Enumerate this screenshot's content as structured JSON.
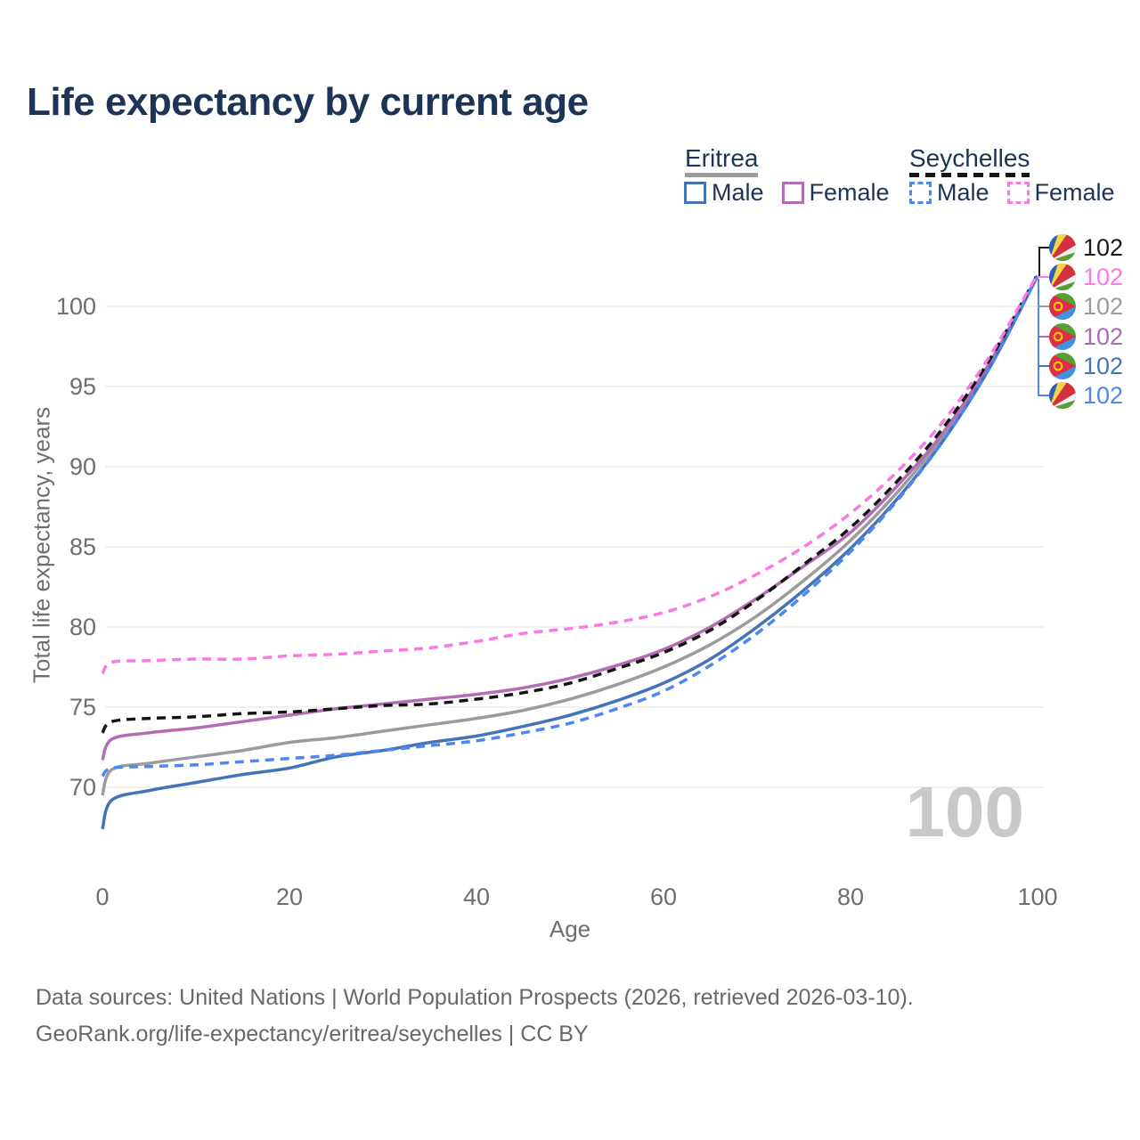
{
  "page": {
    "title": "Life expectancy by current age",
    "watermark": "100"
  },
  "legend": {
    "groups": [
      {
        "label": "Eritrea",
        "line_style": "solid",
        "line_color": "#9b9b9b",
        "items": [
          {
            "label": "Male",
            "color": "#4574b6",
            "dashed": false
          },
          {
            "label": "Female",
            "color": "#b26db4",
            "dashed": false
          }
        ]
      },
      {
        "label": "Seychelles",
        "line_style": "dashed",
        "line_color": "#141414",
        "items": [
          {
            "label": "Male",
            "color": "#4e87f2",
            "dashed": true
          },
          {
            "label": "Female",
            "color": "#fb79e4",
            "dashed": true
          }
        ]
      }
    ]
  },
  "chart_data": {
    "type": "line",
    "title": "Life expectancy by current age",
    "xlabel": "Age",
    "ylabel": "Total life expectancy, years",
    "xlim": [
      0,
      100
    ],
    "ylim": [
      66.5,
      103
    ],
    "xticks": [
      0,
      20,
      40,
      60,
      80,
      100
    ],
    "yticks": [
      70,
      75,
      80,
      85,
      90,
      95,
      100
    ],
    "grid": "horizontal",
    "legend_position": "top-right",
    "x": [
      0,
      1,
      5,
      10,
      15,
      20,
      25,
      30,
      35,
      40,
      45,
      50,
      55,
      60,
      65,
      70,
      75,
      80,
      85,
      90,
      95,
      100
    ],
    "series": [
      {
        "name": "Eritrea Both sexes",
        "country": "Eritrea",
        "sex": "both",
        "color": "#9b9b9b",
        "dashed": false,
        "values": [
          69.5,
          71.1,
          71.5,
          71.9,
          72.3,
          72.8,
          73.1,
          73.5,
          73.9,
          74.3,
          74.8,
          75.5,
          76.4,
          77.5,
          78.9,
          80.7,
          82.9,
          85.4,
          88.4,
          92.0,
          96.5,
          101.9
        ]
      },
      {
        "name": "Eritrea Female",
        "country": "Eritrea",
        "sex": "female",
        "color": "#b26db4",
        "dashed": false,
        "values": [
          71.7,
          73.0,
          73.4,
          73.7,
          74.1,
          74.5,
          74.9,
          75.2,
          75.5,
          75.8,
          76.2,
          76.8,
          77.6,
          78.6,
          80.0,
          81.8,
          83.8,
          85.9,
          88.8,
          92.2,
          96.6,
          101.9
        ]
      },
      {
        "name": "Eritrea Male",
        "country": "Eritrea",
        "sex": "male",
        "color": "#4574b6",
        "dashed": false,
        "values": [
          67.4,
          69.2,
          69.8,
          70.3,
          70.8,
          71.2,
          71.9,
          72.3,
          72.8,
          73.2,
          73.8,
          74.5,
          75.4,
          76.5,
          78.0,
          80.0,
          82.3,
          84.9,
          88.0,
          91.7,
          96.3,
          101.9
        ]
      },
      {
        "name": "Seychelles Both sexes",
        "country": "Seychelles",
        "sex": "both",
        "color": "#141414",
        "dashed": true,
        "values": [
          73.4,
          74.1,
          74.3,
          74.4,
          74.6,
          74.7,
          74.9,
          75.1,
          75.2,
          75.5,
          75.9,
          76.5,
          77.4,
          78.4,
          79.8,
          81.7,
          83.9,
          86.2,
          89.1,
          92.5,
          96.8,
          102.0
        ]
      },
      {
        "name": "Seychelles Male",
        "country": "Seychelles",
        "sex": "male",
        "color": "#4e87f2",
        "dashed": true,
        "values": [
          70.7,
          71.2,
          71.3,
          71.4,
          71.6,
          71.8,
          72.0,
          72.3,
          72.6,
          72.9,
          73.4,
          74.0,
          74.9,
          76.0,
          77.6,
          79.6,
          82.0,
          84.7,
          87.9,
          91.7,
          96.3,
          101.9
        ]
      },
      {
        "name": "Seychelles Female",
        "country": "Seychelles",
        "sex": "female",
        "color": "#fb79e4",
        "dashed": true,
        "values": [
          77.1,
          77.8,
          77.9,
          78.0,
          78.0,
          78.2,
          78.3,
          78.5,
          78.7,
          79.1,
          79.6,
          79.9,
          80.3,
          80.9,
          81.9,
          83.3,
          85.0,
          87.1,
          89.7,
          92.9,
          97.0,
          102.0
        ]
      }
    ],
    "end_labels": [
      {
        "flag": "seychelles",
        "series": "Seychelles Both sexes",
        "text": "102",
        "color": "#1a1a1a"
      },
      {
        "flag": "seychelles",
        "series": "Seychelles Female",
        "text": "102",
        "color": "#fb79e4"
      },
      {
        "flag": "eritrea",
        "series": "Eritrea Both sexes",
        "text": "102",
        "color": "#9b9b9b"
      },
      {
        "flag": "eritrea",
        "series": "Eritrea Female",
        "text": "102",
        "color": "#a96cb2"
      },
      {
        "flag": "eritrea",
        "series": "Eritrea Male",
        "text": "102",
        "color": "#4574b6"
      },
      {
        "flag": "seychelles",
        "series": "Seychelles Male",
        "text": "102",
        "color": "#4e87f2"
      }
    ],
    "flag_colors": {
      "eritrea": {
        "green": "#55a032",
        "blue": "#4292e2",
        "red": "#dd2e44",
        "yellow": "#fbc514"
      },
      "seychelles": {
        "blue": "#2b62b8",
        "yellow": "#f5d547",
        "red": "#d2313e",
        "white": "#f4f4f4",
        "green": "#55a032"
      }
    }
  },
  "footer": {
    "line1": "Data sources: United Nations | World Population Prospects (2026, retrieved 2026-03-10).",
    "line2": "GeoRank.org/life-expectancy/eritrea/seychelles | CC BY"
  }
}
